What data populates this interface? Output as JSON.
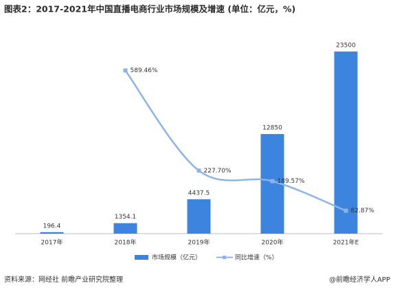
{
  "chart_data": {
    "type": "bar",
    "title": "图表2：2017-2021年中国直播电商行业市场规模及增速 (单位：亿元，%)",
    "categories": [
      "2017年",
      "2018年",
      "2019年",
      "2020年",
      "2021年E"
    ],
    "series": [
      {
        "name": "市场规模（亿元）",
        "type": "bar",
        "color": "#3d84de",
        "values": [
          196.4,
          1354.1,
          4437.5,
          12850,
          23500
        ]
      },
      {
        "name": "同比增速（%）",
        "type": "line",
        "axis": "y2",
        "color": "#8db4e4",
        "values": [
          null,
          589.46,
          227.7,
          189.57,
          82.87
        ],
        "value_labels": [
          null,
          "589.46%",
          "227.70%",
          "189.57%",
          "82.87%"
        ]
      }
    ],
    "ylim": [
      0,
      25000
    ],
    "y2lim": [
      0,
      700
    ],
    "source": "资料来源：网经社 前瞻产业研究院整理",
    "credit": "@前瞻经济学人APP"
  }
}
